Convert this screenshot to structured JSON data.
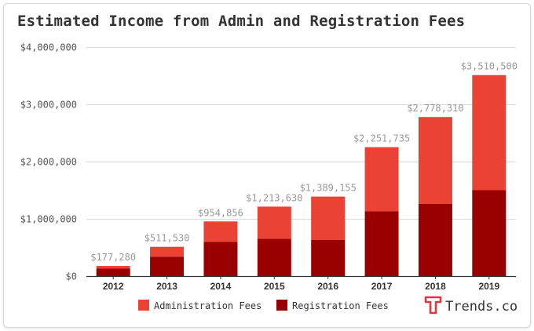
{
  "chart_data": {
    "type": "bar",
    "stacked": true,
    "title": "Estimated Income from Admin and Registration Fees",
    "xlabel": "",
    "ylabel": "",
    "categories": [
      "2012",
      "2013",
      "2014",
      "2015",
      "2016",
      "2017",
      "2018",
      "2019"
    ],
    "series": [
      {
        "name": "Registration Fees",
        "color": "#990000",
        "values": [
          130000,
          340000,
          600000,
          650000,
          630000,
          1130000,
          1260000,
          1500000
        ]
      },
      {
        "name": "Administration Fees",
        "color": "#ea4335",
        "values": [
          47280,
          171530,
          354856,
          563630,
          759155,
          1121735,
          1518310,
          2010500
        ]
      }
    ],
    "totals": [
      177280,
      511530,
      954856,
      1213630,
      1389155,
      2251735,
      2778310,
      3510500
    ],
    "total_labels": [
      "$177,280",
      "$511,530",
      "$954,856",
      "$1,213,630",
      "$1,389,155",
      "$2,251,735",
      "$2,778,310",
      "$3,510,500"
    ],
    "ylim": [
      0,
      4000000
    ],
    "yticks": [
      0,
      1000000,
      2000000,
      3000000,
      4000000
    ],
    "ytick_labels": [
      "$0",
      "$1,000,000",
      "$2,000,000",
      "$3,000,000",
      "$4,000,000"
    ],
    "grid": true,
    "legend_position": "bottom",
    "legend_order": [
      "Administration Fees",
      "Registration Fees"
    ]
  },
  "branding": {
    "logo_text": "Trends.co",
    "logo_icon": "trends-t-logo-icon",
    "logo_color": "#e8353a"
  }
}
